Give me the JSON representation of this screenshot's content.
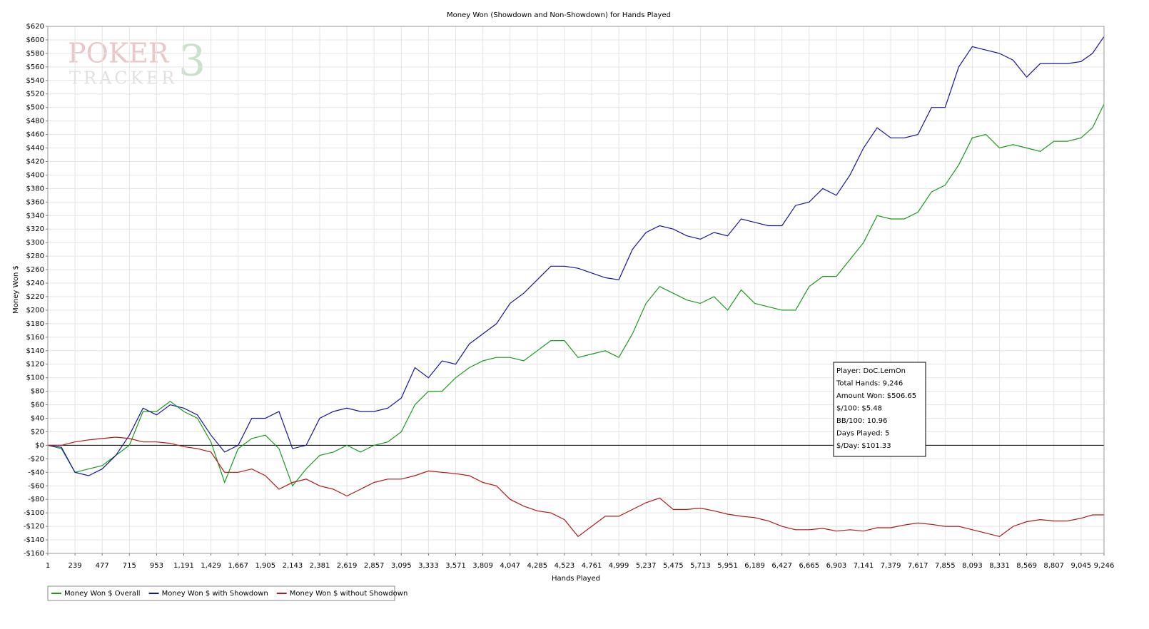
{
  "chart_data": {
    "type": "line",
    "title": "Money Won (Showdown and Non-Showdown) for Hands Played",
    "x_label": "Hands Played",
    "y_label": "Money Won $",
    "watermark": [
      "POKER",
      "TRACKER",
      "3"
    ],
    "annotations": [
      "Player: DoC.LemOn",
      "Total Hands: 9,246",
      "Amount Won: $506.65",
      "$/100: $5.48",
      "BB/100: 10.96",
      "Days Played: 5",
      "$/Day: $101.33"
    ],
    "grid": true,
    "legend": "bottom-left",
    "xlim": [
      1,
      9246
    ],
    "ylim": [
      -160,
      620
    ],
    "xticks": [
      1,
      239,
      477,
      715,
      953,
      {
        "value": 1191,
        "label": "1,191"
      },
      {
        "value": 1429,
        "label": "1,429"
      },
      {
        "value": 1667,
        "label": "1,667"
      },
      {
        "value": 1905,
        "label": "1,905"
      },
      {
        "value": 2143,
        "label": "2,143"
      },
      {
        "value": 2381,
        "label": "2,381"
      },
      {
        "value": 2619,
        "label": "2,619"
      },
      {
        "value": 2857,
        "label": "2,857"
      },
      {
        "value": 3095,
        "label": "3,095"
      },
      {
        "value": 3333,
        "label": "3,333"
      },
      {
        "value": 3571,
        "label": "3,571"
      },
      {
        "value": 3809,
        "label": "3,809"
      },
      {
        "value": 4047,
        "label": "4,047"
      },
      {
        "value": 4285,
        "label": "4,285"
      },
      {
        "value": 4523,
        "label": "4,523"
      },
      {
        "value": 4761,
        "label": "4,761"
      },
      {
        "value": 4999,
        "label": "4,999"
      },
      {
        "value": 5237,
        "label": "5,237"
      },
      {
        "value": 5475,
        "label": "5,475"
      },
      {
        "value": 5713,
        "label": "5,713"
      },
      {
        "value": 5951,
        "label": "5,951"
      },
      {
        "value": 6189,
        "label": "6,189"
      },
      {
        "value": 6427,
        "label": "6,427"
      },
      {
        "value": 6665,
        "label": "6,665"
      },
      {
        "value": 6903,
        "label": "6,903"
      },
      {
        "value": 7141,
        "label": "7,141"
      },
      {
        "value": 7379,
        "label": "7,379"
      },
      {
        "value": 7617,
        "label": "7,617"
      },
      {
        "value": 7855,
        "label": "7,855"
      },
      {
        "value": 8093,
        "label": "8,093"
      },
      {
        "value": 8331,
        "label": "8,331"
      },
      {
        "value": 8569,
        "label": "8,569"
      },
      {
        "value": 8807,
        "label": "8,807"
      },
      {
        "value": 9045,
        "label": "9,045"
      },
      {
        "value": 9246,
        "label": "9,246"
      }
    ],
    "yticks": [
      {
        "value": -160,
        "label": "-$160"
      },
      {
        "value": -140,
        "label": "-$140"
      },
      {
        "value": -120,
        "label": "-$120"
      },
      {
        "value": -100,
        "label": "-$100"
      },
      {
        "value": -80,
        "label": "-$80"
      },
      {
        "value": -60,
        "label": "-$60"
      },
      {
        "value": -40,
        "label": "-$40"
      },
      {
        "value": -20,
        "label": "-$20"
      },
      {
        "value": 0,
        "label": "$0"
      },
      {
        "value": 20,
        "label": "$20"
      },
      {
        "value": 40,
        "label": "$40"
      },
      {
        "value": 60,
        "label": "$60"
      },
      {
        "value": 80,
        "label": "$80"
      },
      {
        "value": 100,
        "label": "$100"
      },
      {
        "value": 120,
        "label": "$120"
      },
      {
        "value": 140,
        "label": "$140"
      },
      {
        "value": 160,
        "label": "$160"
      },
      {
        "value": 180,
        "label": "$180"
      },
      {
        "value": 200,
        "label": "$200"
      },
      {
        "value": 220,
        "label": "$220"
      },
      {
        "value": 240,
        "label": "$240"
      },
      {
        "value": 260,
        "label": "$260"
      },
      {
        "value": 280,
        "label": "$280"
      },
      {
        "value": 300,
        "label": "$300"
      },
      {
        "value": 320,
        "label": "$320"
      },
      {
        "value": 340,
        "label": "$340"
      },
      {
        "value": 360,
        "label": "$360"
      },
      {
        "value": 380,
        "label": "$380"
      },
      {
        "value": 400,
        "label": "$400"
      },
      {
        "value": 420,
        "label": "$420"
      },
      {
        "value": 440,
        "label": "$440"
      },
      {
        "value": 460,
        "label": "$460"
      },
      {
        "value": 480,
        "label": "$480"
      },
      {
        "value": 500,
        "label": "$500"
      },
      {
        "value": 520,
        "label": "$520"
      },
      {
        "value": 540,
        "label": "$540"
      },
      {
        "value": 560,
        "label": "$560"
      },
      {
        "value": 580,
        "label": "$580"
      },
      {
        "value": 600,
        "label": "$600"
      },
      {
        "value": 620,
        "label": "$620"
      }
    ],
    "x": [
      1,
      120,
      239,
      358,
      477,
      596,
      715,
      834,
      953,
      1072,
      1191,
      1310,
      1429,
      1548,
      1667,
      1786,
      1905,
      2024,
      2143,
      2262,
      2381,
      2500,
      2619,
      2738,
      2857,
      2976,
      3095,
      3214,
      3333,
      3452,
      3571,
      3690,
      3809,
      3928,
      4047,
      4166,
      4285,
      4404,
      4523,
      4642,
      4761,
      4880,
      4999,
      5118,
      5237,
      5356,
      5475,
      5594,
      5713,
      5832,
      5951,
      6070,
      6189,
      6308,
      6427,
      6546,
      6665,
      6784,
      6903,
      7022,
      7141,
      7260,
      7379,
      7498,
      7617,
      7736,
      7855,
      7974,
      8093,
      8212,
      8331,
      8450,
      8569,
      8688,
      8807,
      8926,
      9045,
      9145,
      9246
    ],
    "series": [
      {
        "name": "Money Won $ Overall",
        "color": "#1a9a1a",
        "values": [
          0,
          -5,
          -40,
          -35,
          -30,
          -15,
          0,
          50,
          50,
          65,
          50,
          40,
          5,
          -55,
          -5,
          10,
          15,
          -5,
          -60,
          -35,
          -15,
          -10,
          0,
          -10,
          0,
          5,
          20,
          60,
          80,
          80,
          100,
          115,
          125,
          130,
          130,
          125,
          140,
          155,
          155,
          130,
          135,
          140,
          130,
          165,
          210,
          235,
          225,
          215,
          210,
          220,
          200,
          230,
          210,
          205,
          200,
          200,
          235,
          250,
          250,
          275,
          300,
          340,
          335,
          335,
          345,
          375,
          385,
          415,
          455,
          460,
          440,
          445,
          440,
          435,
          450,
          450,
          455,
          470,
          505
        ]
      },
      {
        "name": "Money Won $ with Showdown",
        "color": "#1414a0",
        "values": [
          0,
          -3,
          -40,
          -45,
          -35,
          -15,
          15,
          55,
          45,
          60,
          55,
          45,
          15,
          -10,
          0,
          40,
          40,
          50,
          -5,
          0,
          40,
          50,
          55,
          50,
          50,
          55,
          70,
          115,
          100,
          125,
          120,
          150,
          165,
          180,
          210,
          225,
          245,
          265,
          265,
          262,
          255,
          248,
          245,
          290,
          315,
          325,
          320,
          310,
          305,
          315,
          310,
          335,
          330,
          325,
          325,
          355,
          360,
          380,
          370,
          400,
          440,
          470,
          455,
          455,
          460,
          500,
          500,
          560,
          590,
          585,
          580,
          570,
          545,
          565,
          565,
          565,
          568,
          580,
          605
        ]
      },
      {
        "name": "Money Won $ without Showdown",
        "color": "#b01818",
        "values": [
          0,
          0,
          5,
          8,
          10,
          12,
          10,
          5,
          5,
          3,
          -2,
          -5,
          -10,
          -40,
          -40,
          -35,
          -45,
          -65,
          -55,
          -50,
          -60,
          -65,
          -75,
          -65,
          -55,
          -50,
          -50,
          -45,
          -38,
          -40,
          -42,
          -45,
          -55,
          -60,
          -80,
          -90,
          -97,
          -100,
          -110,
          -135,
          -120,
          -105,
          -105,
          -95,
          -85,
          -78,
          -95,
          -95,
          -93,
          -97,
          -102,
          -105,
          -107,
          -112,
          -120,
          -125,
          -125,
          -123,
          -127,
          -125,
          -127,
          -122,
          -122,
          -118,
          -115,
          -117,
          -120,
          -120,
          -125,
          -130,
          -135,
          -120,
          -113,
          -110,
          -112,
          -112,
          -108,
          -103,
          -103
        ]
      }
    ]
  }
}
